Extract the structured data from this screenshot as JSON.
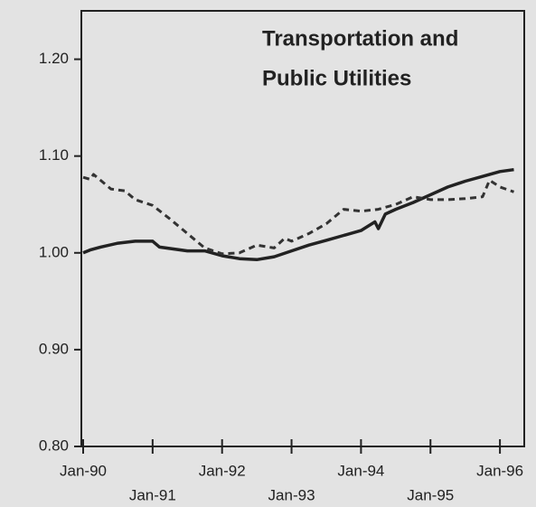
{
  "chart_data": {
    "type": "line",
    "title": [
      "Transportation and",
      "Public Utilities"
    ],
    "xlim": [
      1990,
      1996.35
    ],
    "ylim": [
      0.8,
      1.25
    ],
    "xticks": [
      {
        "value": 1990,
        "label": "Jan-90"
      },
      {
        "value": 1991,
        "label": "Jan-91"
      },
      {
        "value": 1992,
        "label": "Jan-92"
      },
      {
        "value": 1993,
        "label": "Jan-93"
      },
      {
        "value": 1994,
        "label": "Jan-94"
      },
      {
        "value": 1995,
        "label": "Jan-95"
      },
      {
        "value": 1996,
        "label": "Jan-96"
      }
    ],
    "yticks": [
      {
        "value": 0.8,
        "label": "0.80"
      },
      {
        "value": 0.9,
        "label": "0.90"
      },
      {
        "value": 1.0,
        "label": "1.00"
      },
      {
        "value": 1.1,
        "label": "1.10"
      },
      {
        "value": 1.2,
        "label": "1.20"
      }
    ],
    "series": [
      {
        "color": "#222222",
        "dashed": false,
        "x": [
          1990.0,
          1990.1,
          1990.25,
          1990.5,
          1990.75,
          1991.0,
          1991.1,
          1991.5,
          1991.75,
          1992.0,
          1992.25,
          1992.5,
          1992.75,
          1993.0,
          1993.25,
          1993.5,
          1993.75,
          1994.0,
          1994.2,
          1994.25,
          1994.35,
          1994.5,
          1994.75,
          1995.0,
          1995.25,
          1995.5,
          1995.75,
          1996.0,
          1996.2
        ],
        "values": [
          1.0,
          1.003,
          1.006,
          1.01,
          1.012,
          1.012,
          1.006,
          1.002,
          1.002,
          0.997,
          0.994,
          0.993,
          0.996,
          1.002,
          1.008,
          1.013,
          1.018,
          1.023,
          1.032,
          1.025,
          1.04,
          1.045,
          1.052,
          1.06,
          1.068,
          1.074,
          1.079,
          1.084,
          1.086
        ]
      },
      {
        "color": "#333333",
        "dashed": true,
        "x": [
          1990.0,
          1990.1,
          1990.15,
          1990.4,
          1990.6,
          1990.75,
          1991.0,
          1991.25,
          1991.5,
          1991.75,
          1992.0,
          1992.25,
          1992.5,
          1992.75,
          1992.9,
          1993.0,
          1993.25,
          1993.5,
          1993.75,
          1994.0,
          1994.25,
          1994.5,
          1994.75,
          1995.0,
          1995.25,
          1995.5,
          1995.75,
          1995.85,
          1996.0,
          1996.2
        ],
        "values": [
          1.078,
          1.076,
          1.081,
          1.066,
          1.064,
          1.055,
          1.049,
          1.035,
          1.02,
          1.005,
          0.999,
          1.0,
          1.008,
          1.005,
          1.015,
          1.012,
          1.02,
          1.03,
          1.045,
          1.043,
          1.045,
          1.05,
          1.058,
          1.055,
          1.055,
          1.056,
          1.058,
          1.075,
          1.068,
          1.063
        ]
      }
    ]
  }
}
